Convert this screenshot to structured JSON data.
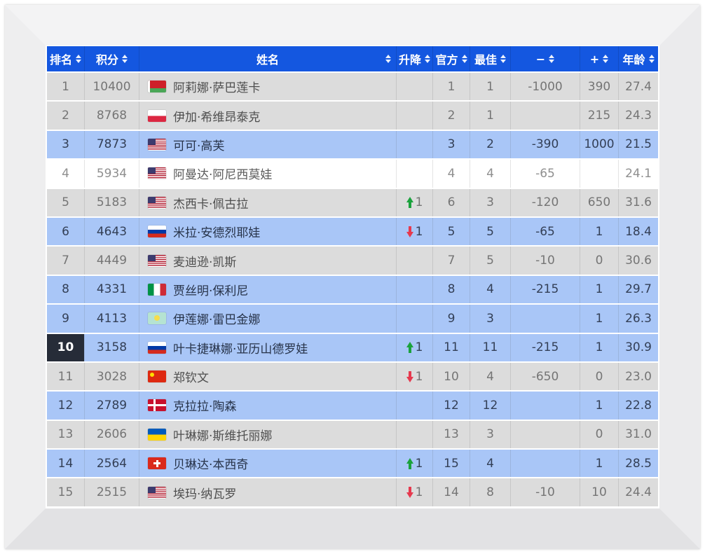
{
  "colors": {
    "header_bg": "#1457e0",
    "row_blue": "#a9c6f7",
    "row_gray": "#dcdcdc",
    "row_white": "#ffffff",
    "rank_highlight_bg": "#262c38",
    "up_arrow_green": "#1aa23c",
    "down_arrow_red": "#e6394e"
  },
  "table": {
    "columns": [
      {
        "key": "rank",
        "label": "排名",
        "sortable": true
      },
      {
        "key": "points",
        "label": "积分",
        "sortable": true
      },
      {
        "key": "name",
        "label": "姓名",
        "sortable": true
      },
      {
        "key": "change",
        "label": "升降",
        "sortable": true
      },
      {
        "key": "official",
        "label": "官方",
        "sortable": true
      },
      {
        "key": "best",
        "label": "最佳",
        "sortable": true
      },
      {
        "key": "minus",
        "label": "−",
        "sortable": true
      },
      {
        "key": "plus",
        "label": "+",
        "sortable": true
      },
      {
        "key": "age",
        "label": "年龄",
        "sortable": true
      }
    ],
    "rows": [
      {
        "rank": "1",
        "points": "10400",
        "flag": "flag-belarus",
        "name": "阿莉娜·萨巴莲卡",
        "change_dir": "",
        "change_value": "",
        "official": "1",
        "best": "1",
        "minus": "-1000",
        "plus": "390",
        "age": "27.4",
        "row_style": "gray",
        "rank_highlight": false
      },
      {
        "rank": "2",
        "points": "8768",
        "flag": "flag-poland",
        "name": "伊加·希维昂泰克",
        "change_dir": "",
        "change_value": "",
        "official": "2",
        "best": "1",
        "minus": "",
        "plus": "215",
        "age": "24.3",
        "row_style": "gray",
        "rank_highlight": false
      },
      {
        "rank": "3",
        "points": "7873",
        "flag": "flag-usa",
        "name": "可可·高芙",
        "change_dir": "",
        "change_value": "",
        "official": "3",
        "best": "2",
        "minus": "-390",
        "plus": "1000",
        "age": "21.5",
        "row_style": "blue",
        "rank_highlight": false
      },
      {
        "rank": "4",
        "points": "5934",
        "flag": "flag-usa",
        "name": "阿曼达·阿尼西莫娃",
        "change_dir": "",
        "change_value": "",
        "official": "4",
        "best": "4",
        "minus": "-65",
        "plus": "",
        "age": "24.1",
        "row_style": "white",
        "rank_highlight": false
      },
      {
        "rank": "5",
        "points": "5183",
        "flag": "flag-usa",
        "name": "杰西卡·佩古拉",
        "change_dir": "up",
        "change_value": "1",
        "official": "6",
        "best": "3",
        "minus": "-120",
        "plus": "650",
        "age": "31.6",
        "row_style": "gray",
        "rank_highlight": false
      },
      {
        "rank": "6",
        "points": "4643",
        "flag": "flag-russia",
        "name": "米拉·安德烈耶娃",
        "change_dir": "down",
        "change_value": "1",
        "official": "5",
        "best": "5",
        "minus": "-65",
        "plus": "1",
        "age": "18.4",
        "row_style": "blue",
        "rank_highlight": false
      },
      {
        "rank": "7",
        "points": "4449",
        "flag": "flag-usa",
        "name": "麦迪逊·凯斯",
        "change_dir": "",
        "change_value": "",
        "official": "7",
        "best": "5",
        "minus": "-10",
        "plus": "0",
        "age": "30.6",
        "row_style": "gray",
        "rank_highlight": false
      },
      {
        "rank": "8",
        "points": "4331",
        "flag": "flag-italy",
        "name": "贾丝明·保利尼",
        "change_dir": "",
        "change_value": "",
        "official": "8",
        "best": "4",
        "minus": "-215",
        "plus": "1",
        "age": "29.7",
        "row_style": "blue",
        "rank_highlight": false
      },
      {
        "rank": "9",
        "points": "4113",
        "flag": "flag-kazakhstan",
        "name": "伊莲娜·雷巴金娜",
        "change_dir": "",
        "change_value": "",
        "official": "9",
        "best": "3",
        "minus": "",
        "plus": "1",
        "age": "26.3",
        "row_style": "blue",
        "rank_highlight": false
      },
      {
        "rank": "10",
        "points": "3158",
        "flag": "flag-russia",
        "name": "叶卡捷琳娜·亚历山德罗娃",
        "change_dir": "up",
        "change_value": "1",
        "official": "11",
        "best": "11",
        "minus": "-215",
        "plus": "1",
        "age": "30.9",
        "row_style": "blue",
        "rank_highlight": true
      },
      {
        "rank": "11",
        "points": "3028",
        "flag": "flag-china",
        "name": "郑钦文",
        "change_dir": "down",
        "change_value": "1",
        "official": "10",
        "best": "4",
        "minus": "-650",
        "plus": "0",
        "age": "23.0",
        "row_style": "gray",
        "rank_highlight": false
      },
      {
        "rank": "12",
        "points": "2789",
        "flag": "flag-denmark",
        "name": "克拉拉·陶森",
        "change_dir": "",
        "change_value": "",
        "official": "12",
        "best": "12",
        "minus": "",
        "plus": "1",
        "age": "22.8",
        "row_style": "blue",
        "rank_highlight": false
      },
      {
        "rank": "13",
        "points": "2606",
        "flag": "flag-ukraine",
        "name": "叶琳娜·斯维托丽娜",
        "change_dir": "",
        "change_value": "",
        "official": "13",
        "best": "3",
        "minus": "",
        "plus": "0",
        "age": "31.0",
        "row_style": "gray",
        "rank_highlight": false
      },
      {
        "rank": "14",
        "points": "2564",
        "flag": "flag-switzerland",
        "name": "贝琳达·本西奇",
        "change_dir": "up",
        "change_value": "1",
        "official": "15",
        "best": "4",
        "minus": "",
        "plus": "1",
        "age": "28.5",
        "row_style": "blue",
        "rank_highlight": false
      },
      {
        "rank": "15",
        "points": "2515",
        "flag": "flag-usa",
        "name": "埃玛·纳瓦罗",
        "change_dir": "down",
        "change_value": "1",
        "official": "14",
        "best": "8",
        "minus": "-10",
        "plus": "10",
        "age": "24.4",
        "row_style": "gray",
        "rank_highlight": false
      }
    ]
  }
}
